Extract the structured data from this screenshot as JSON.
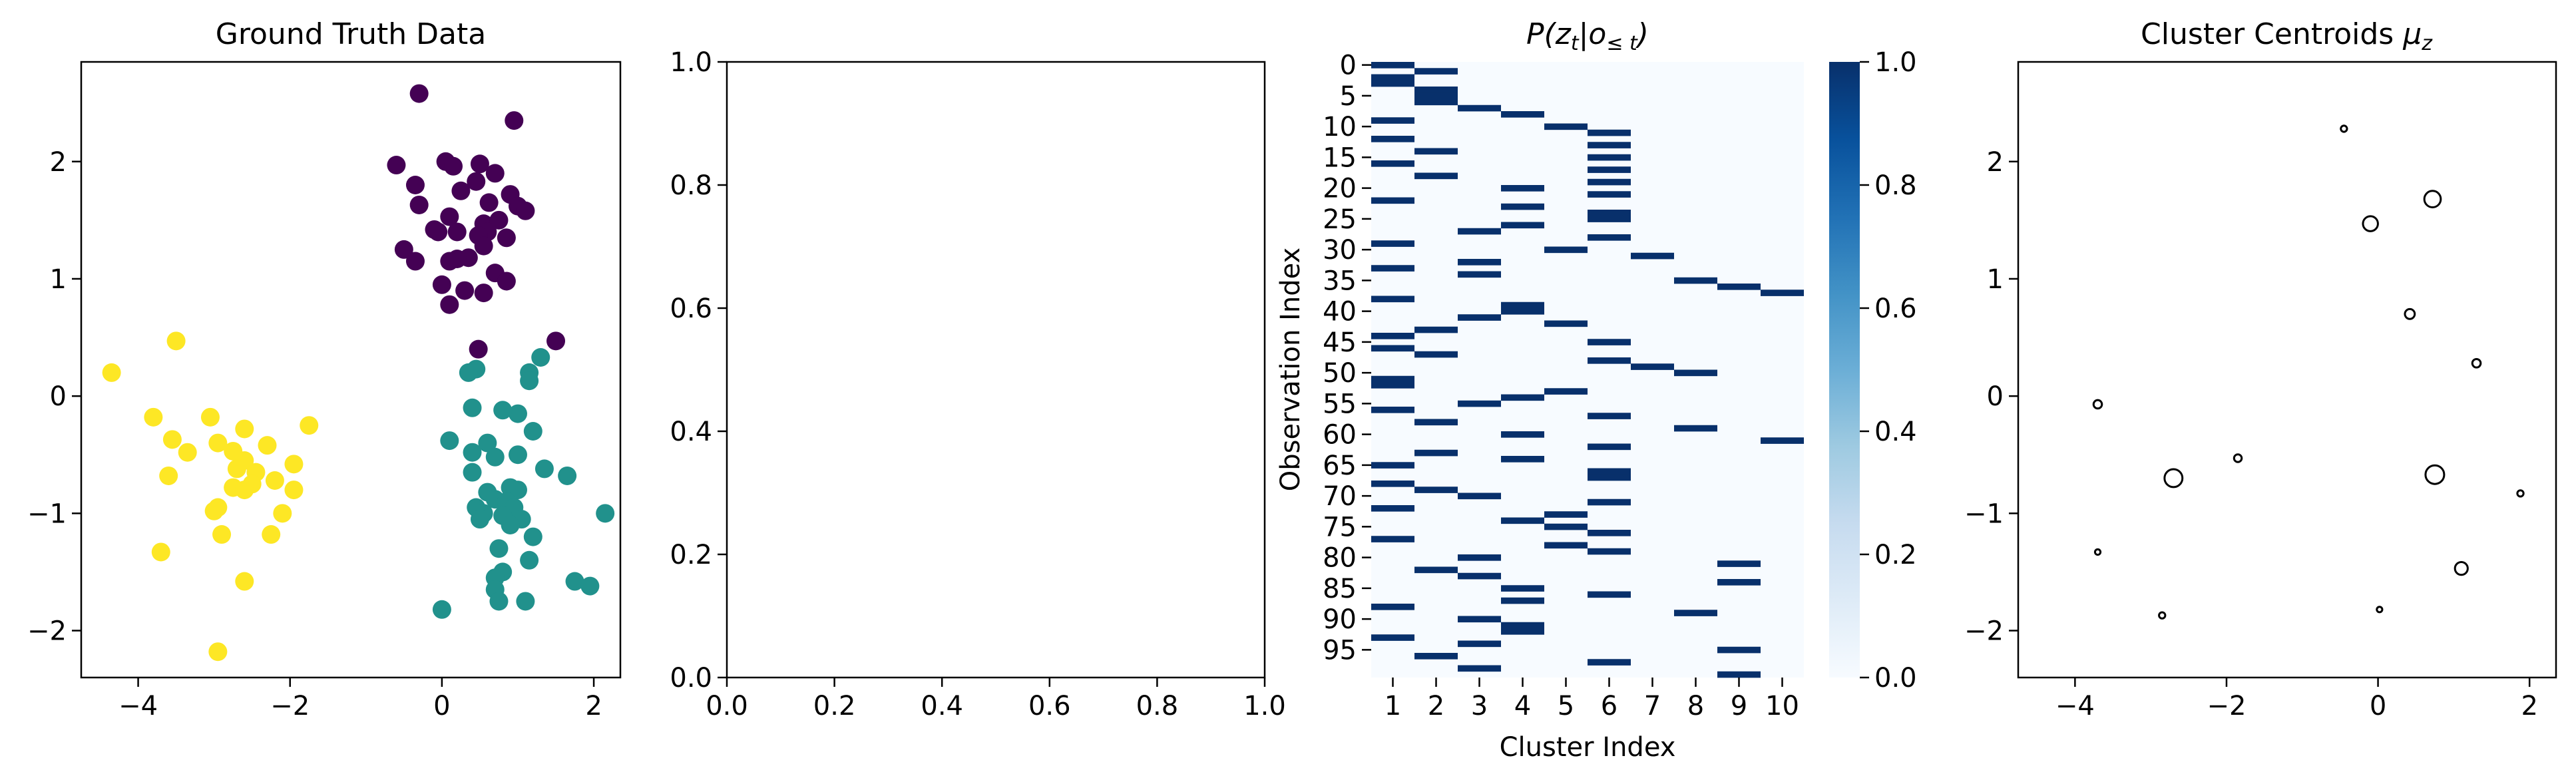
{
  "chart_data": [
    {
      "type": "scatter",
      "title": "Ground Truth Data",
      "xlabel": "",
      "ylabel": "",
      "xlim": [
        -4.75,
        2.35
      ],
      "ylim": [
        -2.4,
        2.85
      ],
      "xticks": [
        "−4",
        "−2",
        "0",
        "2"
      ],
      "xtick_values": [
        -4,
        -2,
        0,
        2
      ],
      "yticks": [
        "−2",
        "−1",
        "0",
        "1",
        "2"
      ],
      "ytick_values": [
        -2,
        -1,
        0,
        1,
        2
      ],
      "grid": false,
      "colors": [
        "#440154",
        "#21918c",
        "#fde725"
      ],
      "series": [
        {
          "color": "#440154",
          "points": [
            [
              -0.3,
              2.58
            ],
            [
              0.95,
              2.35
            ],
            [
              -0.6,
              1.97
            ],
            [
              0.05,
              2.0
            ],
            [
              0.15,
              1.96
            ],
            [
              0.5,
              1.98
            ],
            [
              0.7,
              1.9
            ],
            [
              0.45,
              1.83
            ],
            [
              -0.35,
              1.8
            ],
            [
              0.25,
              1.75
            ],
            [
              0.9,
              1.72
            ],
            [
              -0.3,
              1.63
            ],
            [
              0.62,
              1.65
            ],
            [
              1.0,
              1.62
            ],
            [
              1.1,
              1.58
            ],
            [
              0.1,
              1.53
            ],
            [
              -0.1,
              1.42
            ],
            [
              0.55,
              1.47
            ],
            [
              0.75,
              1.5
            ],
            [
              0.6,
              1.4
            ],
            [
              0.48,
              1.37
            ],
            [
              -0.05,
              1.4
            ],
            [
              0.2,
              1.4
            ],
            [
              0.85,
              1.35
            ],
            [
              0.55,
              1.28
            ],
            [
              -0.5,
              1.25
            ],
            [
              0.35,
              1.18
            ],
            [
              0.2,
              1.17
            ],
            [
              -0.35,
              1.15
            ],
            [
              0.1,
              1.15
            ],
            [
              0.7,
              1.05
            ],
            [
              0.85,
              0.98
            ],
            [
              0.0,
              0.95
            ],
            [
              0.3,
              0.9
            ],
            [
              0.55,
              0.88
            ],
            [
              0.1,
              0.78
            ],
            [
              0.48,
              0.4
            ],
            [
              1.5,
              0.47
            ]
          ]
        },
        {
          "color": "#21918c",
          "points": [
            [
              1.3,
              0.33
            ],
            [
              0.45,
              0.23
            ],
            [
              1.15,
              0.2
            ],
            [
              1.15,
              0.13
            ],
            [
              0.35,
              0.2
            ],
            [
              0.4,
              -0.1
            ],
            [
              1.0,
              -0.15
            ],
            [
              0.8,
              -0.12
            ],
            [
              1.2,
              -0.3
            ],
            [
              0.1,
              -0.38
            ],
            [
              0.6,
              -0.4
            ],
            [
              0.4,
              -0.48
            ],
            [
              0.7,
              -0.52
            ],
            [
              1.0,
              -0.5
            ],
            [
              0.4,
              -0.65
            ],
            [
              1.35,
              -0.62
            ],
            [
              1.65,
              -0.68
            ],
            [
              0.6,
              -0.82
            ],
            [
              0.9,
              -0.78
            ],
            [
              1.0,
              -0.8
            ],
            [
              0.7,
              -0.88
            ],
            [
              0.85,
              -0.9
            ],
            [
              0.45,
              -0.95
            ],
            [
              0.95,
              -0.95
            ],
            [
              0.55,
              -1.0
            ],
            [
              0.8,
              -1.02
            ],
            [
              1.05,
              -1.05
            ],
            [
              0.5,
              -1.05
            ],
            [
              2.15,
              -1.0
            ],
            [
              0.9,
              -1.1
            ],
            [
              1.2,
              -1.2
            ],
            [
              0.75,
              -1.3
            ],
            [
              1.15,
              -1.4
            ],
            [
              0.8,
              -1.5
            ],
            [
              0.7,
              -1.55
            ],
            [
              0.7,
              -1.65
            ],
            [
              1.75,
              -1.58
            ],
            [
              1.95,
              -1.62
            ],
            [
              0.75,
              -1.75
            ],
            [
              1.1,
              -1.75
            ],
            [
              0.0,
              -1.82
            ]
          ]
        },
        {
          "color": "#fde725",
          "points": [
            [
              -3.5,
              0.47
            ],
            [
              -4.35,
              0.2
            ],
            [
              -3.8,
              -0.18
            ],
            [
              -3.05,
              -0.18
            ],
            [
              -2.6,
              -0.28
            ],
            [
              -1.75,
              -0.25
            ],
            [
              -3.55,
              -0.37
            ],
            [
              -2.95,
              -0.4
            ],
            [
              -2.3,
              -0.42
            ],
            [
              -3.35,
              -0.48
            ],
            [
              -2.75,
              -0.47
            ],
            [
              -2.6,
              -0.55
            ],
            [
              -1.95,
              -0.58
            ],
            [
              -2.7,
              -0.62
            ],
            [
              -2.45,
              -0.65
            ],
            [
              -3.6,
              -0.68
            ],
            [
              -2.2,
              -0.72
            ],
            [
              -2.5,
              -0.75
            ],
            [
              -2.75,
              -0.78
            ],
            [
              -2.6,
              -0.8
            ],
            [
              -1.95,
              -0.8
            ],
            [
              -2.95,
              -0.95
            ],
            [
              -3.0,
              -0.98
            ],
            [
              -2.1,
              -1.0
            ],
            [
              -2.25,
              -1.18
            ],
            [
              -2.9,
              -1.18
            ],
            [
              -3.7,
              -1.33
            ],
            [
              -2.6,
              -1.58
            ],
            [
              -2.95,
              -2.18
            ]
          ]
        }
      ]
    },
    {
      "type": "scatter",
      "title": "",
      "xlabel": "",
      "ylabel": "",
      "xlim": [
        0,
        1
      ],
      "ylim": [
        0,
        1
      ],
      "xticks": [
        "0.0",
        "0.2",
        "0.4",
        "0.6",
        "0.8",
        "1.0"
      ],
      "xtick_values": [
        0,
        0.2,
        0.4,
        0.6,
        0.8,
        1.0
      ],
      "yticks": [
        "0.0",
        "0.2",
        "0.4",
        "0.6",
        "0.8",
        "1.0"
      ],
      "ytick_values": [
        0,
        0.2,
        0.4,
        0.6,
        0.8,
        1.0
      ],
      "grid": false,
      "series": []
    },
    {
      "type": "heatmap",
      "title_main": "P(z",
      "title_sub1": "t",
      "title_mid": "|o",
      "title_sub2": "≤ t",
      "title_end": ")",
      "xlabel": "Cluster Index",
      "ylabel": "Observation Index",
      "xtick_labels": [
        "1",
        "2",
        "3",
        "4",
        "5",
        "6",
        "7",
        "8",
        "9",
        "10"
      ],
      "ytick_labels": [
        "0",
        "5",
        "10",
        "15",
        "20",
        "25",
        "30",
        "35",
        "40",
        "45",
        "50",
        "55",
        "60",
        "65",
        "70",
        "75",
        "80",
        "85",
        "90",
        "95"
      ],
      "n_rows": 100,
      "colormap": "Blues",
      "color_low": "#f7fbff",
      "color_high": "#08306b",
      "colorbar_ticks": [
        "0.0",
        "0.2",
        "0.4",
        "0.6",
        "0.8",
        "1.0"
      ],
      "colorbar_range": [
        0,
        1
      ],
      "assignments": [
        1,
        2,
        1,
        1,
        2,
        2,
        2,
        3,
        4,
        1,
        5,
        6,
        1,
        6,
        2,
        6,
        1,
        6,
        2,
        6,
        4,
        6,
        1,
        4,
        6,
        6,
        4,
        3,
        6,
        1,
        5,
        7,
        3,
        1,
        3,
        8,
        9,
        10,
        1,
        4,
        4,
        3,
        5,
        2,
        1,
        6,
        1,
        2,
        6,
        7,
        8,
        1,
        1,
        5,
        4,
        3,
        1,
        6,
        2,
        8,
        4,
        10,
        6,
        2,
        4,
        1,
        6,
        6,
        1,
        2,
        3,
        6,
        1,
        5,
        4,
        5,
        6,
        1,
        5,
        6,
        3,
        9,
        2,
        3,
        9,
        4,
        6,
        4,
        1,
        8,
        3,
        4,
        4,
        1,
        3,
        9,
        2,
        6,
        3,
        9
      ]
    },
    {
      "type": "scatter",
      "title_main": "Cluster Centroids ",
      "title_math": "μ",
      "title_sub": "z",
      "xlabel": "",
      "ylabel": "",
      "xlim": [
        -4.75,
        2.35
      ],
      "ylim": [
        -2.4,
        2.85
      ],
      "xticks": [
        "−4",
        "−2",
        "0",
        "2"
      ],
      "xtick_values": [
        -4,
        -2,
        0,
        2
      ],
      "yticks": [
        "−2",
        "−1",
        "0",
        "1",
        "2"
      ],
      "ytick_values": [
        -2,
        -1,
        0,
        1,
        2
      ],
      "grid": false,
      "marker": "hollow circle, size proportional to weight",
      "points": [
        {
          "x": -0.45,
          "y": 2.28,
          "w": 0.15
        },
        {
          "x": 0.72,
          "y": 1.68,
          "w": 0.85
        },
        {
          "x": -0.1,
          "y": 1.47,
          "w": 0.75
        },
        {
          "x": 0.42,
          "y": 0.7,
          "w": 0.4
        },
        {
          "x": 1.3,
          "y": 0.28,
          "w": 0.3
        },
        {
          "x": -3.7,
          "y": -0.07,
          "w": 0.3
        },
        {
          "x": -1.85,
          "y": -0.53,
          "w": 0.25
        },
        {
          "x": -2.7,
          "y": -0.7,
          "w": 0.95
        },
        {
          "x": 0.75,
          "y": -0.67,
          "w": 1.0
        },
        {
          "x": 1.88,
          "y": -0.83,
          "w": 0.15
        },
        {
          "x": -3.7,
          "y": -1.33,
          "w": 0.1
        },
        {
          "x": 1.1,
          "y": -1.47,
          "w": 0.6
        },
        {
          "x": -2.85,
          "y": -1.87,
          "w": 0.15
        },
        {
          "x": 0.02,
          "y": -1.82,
          "w": 0.1
        }
      ]
    }
  ]
}
